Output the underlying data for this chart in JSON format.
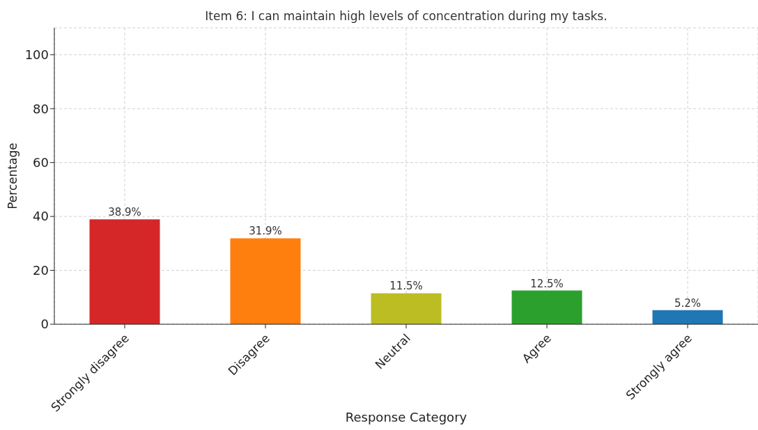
{
  "chart_data": {
    "type": "bar",
    "title": "Item 6: I can maintain high levels of concentration during my tasks.",
    "xlabel": "Response Category",
    "ylabel": "Percentage",
    "categories": [
      "Strongly disagree",
      "Disagree",
      "Neutral",
      "Agree",
      "Strongly agree"
    ],
    "values": [
      38.9,
      31.9,
      11.5,
      12.5,
      5.2
    ],
    "value_labels": [
      "38.9%",
      "31.9%",
      "11.5%",
      "12.5%",
      "5.2%"
    ],
    "colors": [
      "#d62728",
      "#ff7f0e",
      "#bcbd22",
      "#2ca02c",
      "#1f77b4"
    ],
    "ylim": [
      0,
      110
    ],
    "yticks": [
      0,
      20,
      40,
      60,
      80,
      100
    ],
    "grid": true
  }
}
